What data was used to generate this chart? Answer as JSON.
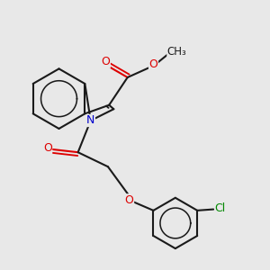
{
  "background_color": "#e8e8e8",
  "bond_color": "#1a1a1a",
  "bond_width": 1.5,
  "atom_colors": {
    "O": "#dd0000",
    "N": "#0000cc",
    "Cl": "#008800",
    "C": "#1a1a1a"
  },
  "figsize": [
    3.0,
    3.0
  ],
  "dpi": 100,
  "xlim": [
    -1.8,
    2.8
  ],
  "ylim": [
    -2.5,
    1.8
  ]
}
